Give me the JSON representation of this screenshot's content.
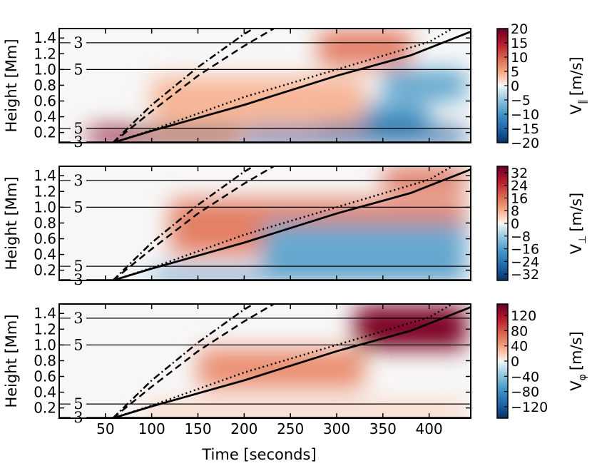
{
  "chart_data": [
    {
      "type": "heatmap",
      "panel": "parallel",
      "colorbar_title": "V_∥ [m/s]",
      "colorbar_title_base": "V",
      "colorbar_title_sub": "∥",
      "colorbar_title_unit": "[m/s]",
      "clim": [
        -20,
        20
      ],
      "colorbar_ticks": [
        20,
        15,
        10,
        5,
        0,
        -5,
        -10,
        -15,
        -20
      ],
      "colorbar_tick_labels": [
        "20",
        "15",
        "10",
        "5",
        "0",
        "−5",
        "−10",
        "−15",
        "−20"
      ],
      "features": [
        {
          "t0": 30,
          "t1": 200,
          "h0": 0.07,
          "h1": 0.25,
          "value": 18
        },
        {
          "t0": 200,
          "t1": 440,
          "h0": 0.07,
          "h1": 0.25,
          "value": -16
        },
        {
          "t0": 280,
          "t1": 400,
          "h0": 0.25,
          "h1": 0.55,
          "value": -10
        },
        {
          "t0": 350,
          "t1": 440,
          "h0": 0.6,
          "h1": 1.0,
          "value": -8
        },
        {
          "t0": 280,
          "t1": 380,
          "h0": 1.05,
          "h1": 1.5,
          "value": 8
        },
        {
          "t0": 100,
          "t1": 330,
          "h0": 0.3,
          "h1": 0.9,
          "value": 4
        }
      ]
    },
    {
      "type": "heatmap",
      "panel": "perpendicular",
      "colorbar_title": "V_⊥ [m/s]",
      "colorbar_title_base": "V",
      "colorbar_title_sub": "⊥",
      "colorbar_title_unit": "[m/s]",
      "clim": [
        -36,
        36
      ],
      "colorbar_ticks": [
        32,
        24,
        16,
        8,
        0,
        -8,
        -16,
        -24,
        -32
      ],
      "colorbar_tick_labels": [
        "32",
        "24",
        "16",
        "8",
        "0",
        "−8",
        "−16",
        "−24",
        "−32"
      ],
      "features": [
        {
          "t0": 120,
          "t1": 440,
          "h0": 0.4,
          "h1": 1.1,
          "value": 14
        },
        {
          "t0": 220,
          "t1": 440,
          "h0": 0.2,
          "h1": 0.8,
          "value": -14
        },
        {
          "t0": 100,
          "t1": 440,
          "h0": 0.07,
          "h1": 0.2,
          "value": -20
        },
        {
          "t0": 350,
          "t1": 440,
          "h0": 1.2,
          "h1": 1.5,
          "value": 16
        }
      ]
    },
    {
      "type": "heatmap",
      "panel": "azimuthal",
      "colorbar_title": "V_φ [m/s]",
      "colorbar_title_base": "V",
      "colorbar_title_sub": "φ",
      "colorbar_title_unit": "[m/s]",
      "clim": [
        -150,
        150
      ],
      "colorbar_ticks": [
        120,
        80,
        40,
        0,
        -40,
        -80,
        -120
      ],
      "colorbar_tick_labels": [
        "120",
        "80",
        "40",
        "0",
        "−40",
        "−80",
        "−120"
      ],
      "features": [
        {
          "t0": 320,
          "t1": 440,
          "h0": 0.95,
          "h1": 1.5,
          "value": 140
        },
        {
          "t0": 150,
          "t1": 330,
          "h0": 0.45,
          "h1": 0.95,
          "value": 50
        },
        {
          "t0": 90,
          "t1": 440,
          "h0": 0.07,
          "h1": 0.25,
          "value": 20
        }
      ]
    }
  ],
  "shared_axes": {
    "x_label": "Time [seconds]",
    "y_label": "Height [Mm]",
    "xlim": [
      0,
      445
    ],
    "ylim": [
      0.07,
      1.52
    ],
    "x_ticks": [
      50,
      100,
      150,
      200,
      250,
      300,
      350,
      400
    ],
    "x_tick_labels": [
      "50",
      "100",
      "150",
      "200",
      "250",
      "300",
      "350",
      "400"
    ],
    "y_ticks": [
      0.2,
      0.4,
      0.6,
      0.8,
      1.0,
      1.2,
      1.4
    ],
    "y_tick_labels": [
      "0.2",
      "0.4",
      "0.6",
      "0.8",
      "1.0",
      "1.2",
      "1.4"
    ]
  },
  "contours": [
    {
      "label": "3",
      "height": 1.34,
      "label_time": 20
    },
    {
      "label": "5",
      "height": 1.0,
      "label_time": 20
    },
    {
      "label": "5",
      "height": 0.25,
      "label_time": 20
    },
    {
      "label": "3",
      "height": 0.08,
      "label_time": 20
    }
  ],
  "speed_lines": [
    {
      "name": "solid",
      "style": "solid",
      "points": [
        [
          58,
          0.07
        ],
        [
          100,
          0.22
        ],
        [
          200,
          0.55
        ],
        [
          300,
          0.92
        ],
        [
          380,
          1.18
        ],
        [
          445,
          1.48
        ]
      ]
    },
    {
      "name": "dotted",
      "style": "dotted",
      "points": [
        [
          58,
          0.07
        ],
        [
          100,
          0.23
        ],
        [
          200,
          0.65
        ],
        [
          300,
          1.0
        ],
        [
          400,
          1.35
        ],
        [
          425,
          1.52
        ]
      ]
    },
    {
      "name": "dashed",
      "style": "dashed",
      "points": [
        [
          58,
          0.07
        ],
        [
          100,
          0.47
        ],
        [
          150,
          0.92
        ],
        [
          200,
          1.3
        ],
        [
          232,
          1.52
        ]
      ]
    },
    {
      "name": "dashdot",
      "style": "dashdot",
      "points": [
        [
          58,
          0.07
        ],
        [
          100,
          0.55
        ],
        [
          150,
          1.03
        ],
        [
          200,
          1.45
        ],
        [
          210,
          1.52
        ]
      ]
    }
  ]
}
